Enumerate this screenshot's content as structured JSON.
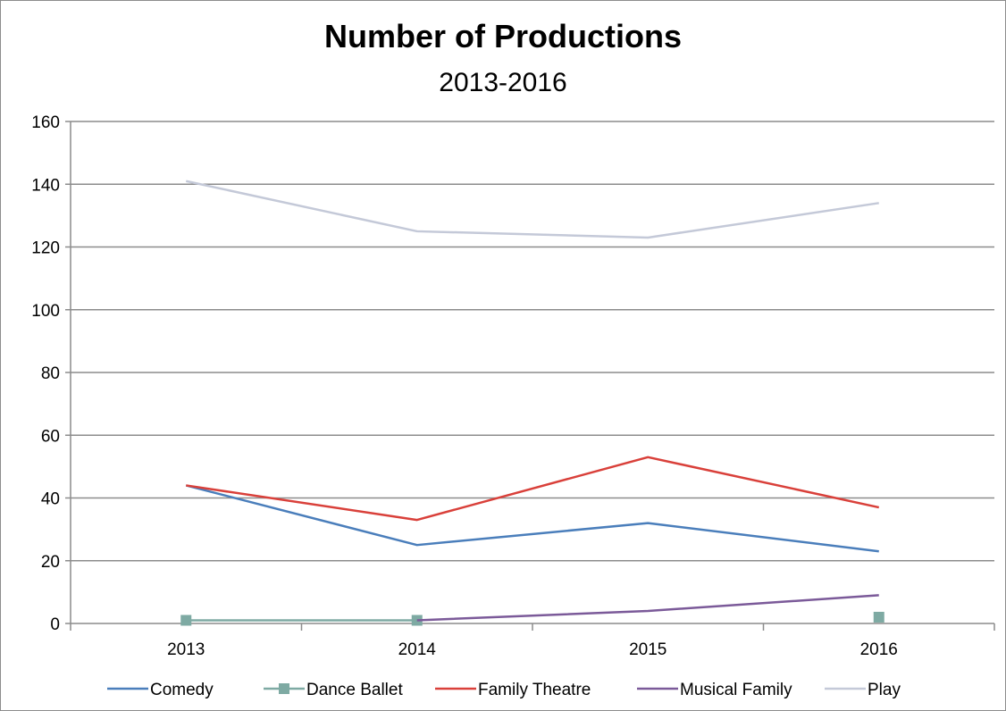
{
  "chart_data": {
    "type": "line",
    "title": "Number of Productions",
    "subtitle": "2013-2016",
    "categories": [
      "2013",
      "2014",
      "2015",
      "2016"
    ],
    "ylim": [
      0,
      160
    ],
    "yticks": [
      0,
      20,
      40,
      60,
      80,
      100,
      120,
      140,
      160
    ],
    "grid": true,
    "legend_position": "bottom",
    "series": [
      {
        "name": "Comedy",
        "values": [
          44,
          25,
          32,
          23
        ],
        "color": "#4a7ebb",
        "marker": "none"
      },
      {
        "name": "Dance Ballet",
        "values": [
          1,
          1,
          null,
          2
        ],
        "color": "#7eaaa3",
        "marker": "square"
      },
      {
        "name": "Family Theatre",
        "values": [
          44,
          33,
          53,
          37
        ],
        "color": "#d9403a",
        "marker": "none"
      },
      {
        "name": "Musical Family",
        "values": [
          null,
          1,
          4,
          9
        ],
        "color": "#7b5a99",
        "marker": "none"
      },
      {
        "name": "Play",
        "values": [
          141,
          125,
          123,
          134
        ],
        "color": "#c4c9d8",
        "marker": "none"
      }
    ]
  }
}
